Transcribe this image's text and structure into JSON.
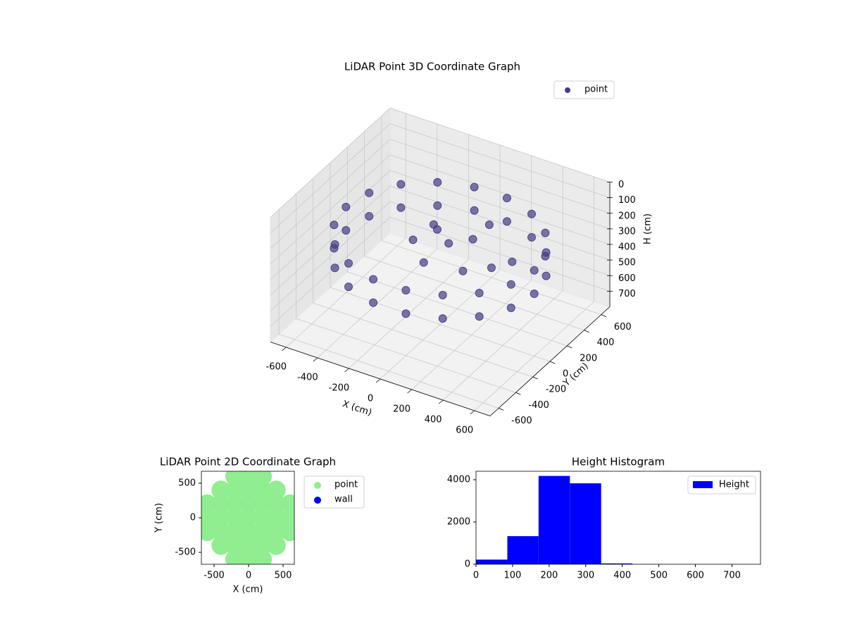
{
  "chart_data": [
    {
      "type": "scatter3d",
      "title": "LiDAR Point 3D Coordinate Graph",
      "xlabel": "X (cm)",
      "ylabel": "Y (cm)",
      "zlabel": "H (cm)",
      "xlim": [
        -700,
        700
      ],
      "ylim": [
        -700,
        700
      ],
      "zlim": [
        800,
        0
      ],
      "xticks": [
        -600,
        -400,
        -200,
        0,
        200,
        400,
        600
      ],
      "yticks": [
        -600,
        -400,
        -200,
        0,
        200,
        400,
        600
      ],
      "zticks": [
        0,
        100,
        200,
        300,
        400,
        500,
        600,
        700
      ],
      "grid": true,
      "legend": "upper right",
      "series": [
        {
          "name": "point",
          "color": "#433e85",
          "x": [
            600,
            564,
            460,
            300,
            104,
            -104,
            -300,
            -460,
            -564,
            -600,
            -564,
            -460,
            -300,
            -104,
            104,
            300,
            460,
            564,
            600,
            564,
            460,
            300,
            104,
            -104,
            -300,
            -460,
            -564,
            -600,
            -564,
            -460,
            -300,
            -104,
            104,
            300,
            460,
            564,
            -100,
            0,
            -200,
            100,
            200,
            300,
            -50,
            350,
            150,
            -150
          ],
          "y": [
            0,
            205,
            386,
            520,
            591,
            591,
            520,
            386,
            205,
            0,
            -205,
            -386,
            -520,
            -591,
            -591,
            -520,
            -386,
            -205,
            0,
            205,
            386,
            520,
            591,
            591,
            520,
            386,
            205,
            0,
            -205,
            -386,
            -520,
            -591,
            -591,
            -520,
            -386,
            -205,
            150,
            100,
            50,
            200,
            -100,
            50,
            -100,
            200,
            300,
            200
          ],
          "z": [
            250,
            250,
            250,
            250,
            250,
            250,
            250,
            250,
            250,
            250,
            250,
            250,
            250,
            250,
            250,
            250,
            250,
            250,
            400,
            400,
            400,
            400,
            400,
            400,
            400,
            400,
            400,
            400,
            400,
            400,
            400,
            400,
            400,
            400,
            400,
            400,
            300,
            330,
            350,
            320,
            340,
            360,
            370,
            380,
            260,
            310
          ]
        }
      ]
    },
    {
      "type": "scatter",
      "title": "LiDAR Point 2D Coordinate Graph",
      "xlabel": "X (cm)",
      "ylabel": "Y (cm)",
      "xlim": [
        -684,
        663
      ],
      "ylim": [
        -673,
        673
      ],
      "xticks": [
        -500,
        0,
        500
      ],
      "yticks": [
        -500,
        0,
        500
      ],
      "legend": "outside right",
      "series": [
        {
          "name": "point",
          "color": "#90ee90",
          "x": [
            -600,
            -600,
            -600,
            -400,
            -400,
            -400,
            -400,
            -400,
            -200,
            -200,
            -200,
            -200,
            -200,
            -200,
            -200,
            0,
            0,
            0,
            0,
            0,
            0,
            0,
            200,
            200,
            200,
            200,
            200,
            200,
            200,
            400,
            400,
            400,
            400,
            400,
            600,
            600,
            600
          ],
          "y": [
            -200,
            0,
            200,
            -400,
            -200,
            0,
            200,
            400,
            -600,
            -400,
            -200,
            0,
            200,
            400,
            600,
            -600,
            -400,
            -200,
            0,
            200,
            400,
            600,
            -600,
            -400,
            -200,
            0,
            200,
            400,
            600,
            -400,
            -200,
            0,
            200,
            400,
            -200,
            0,
            200
          ]
        },
        {
          "name": "wall",
          "color": "#0000ff",
          "x": [],
          "y": []
        }
      ]
    },
    {
      "type": "histogram",
      "title": "Height Histogram",
      "bins": [
        0,
        85.6,
        171.1,
        256.7,
        342.2,
        427.8,
        513.3,
        598.9,
        684.4,
        770
      ],
      "series": [
        {
          "name": "Height",
          "color": "#0000ff",
          "values": [
            220,
            1330,
            4180,
            3830,
            40,
            5,
            2,
            1,
            1
          ]
        }
      ],
      "xlim": [
        0,
        778
      ],
      "ylim": [
        0,
        4400
      ],
      "xticks": [
        0,
        100,
        200,
        300,
        400,
        500,
        600,
        700
      ],
      "yticks": [
        0,
        2000,
        4000
      ],
      "legend": "upper right"
    }
  ]
}
